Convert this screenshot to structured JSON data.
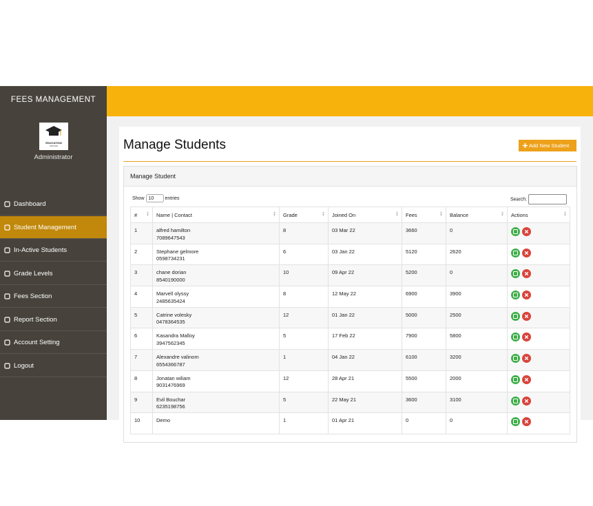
{
  "sidebar": {
    "title": "FEES MANAGEMENT",
    "logo_text": [
      "EDUCATION",
      "CENTER"
    ],
    "user": "Administrator",
    "active": 1,
    "menu": [
      "Dashboard",
      "Student Management",
      "In-Active Students",
      "Grade Levels",
      "Fees Section",
      "Report Section",
      "Account Setting",
      "Logout"
    ]
  },
  "main": {
    "heading": "Manage Students",
    "add_button": "Add New Student",
    "panel_title": "Manage Student",
    "show_label": "Show",
    "page_size": "10",
    "entries_label": "entries",
    "search_label": "Search:",
    "table": {
      "columns": [
        "#",
        "Name | Contact",
        "Grade",
        "Joined On",
        "Fees",
        "Balance",
        "Actions"
      ],
      "rows": [
        {
          "id": 1,
          "name": "alfred hamilton",
          "contact": "7089647543",
          "grade": 8,
          "joined": "03 Mar 22",
          "fees": 3660,
          "balance": 0
        },
        {
          "id": 2,
          "name": "Stephane gelmore",
          "contact": "0598734231",
          "grade": 6,
          "joined": "03 Jan 22",
          "fees": 5120,
          "balance": 2620
        },
        {
          "id": 3,
          "name": "chane dorian",
          "contact": "8540190000",
          "grade": 10,
          "joined": "09 Apr 22",
          "fees": 5200,
          "balance": 0
        },
        {
          "id": 4,
          "name": "Marvell olyssy",
          "contact": "2485635424",
          "grade": 8,
          "joined": "12 May 22",
          "fees": 6900,
          "balance": 3900
        },
        {
          "id": 5,
          "name": "Catrine volesky",
          "contact": "0478364535",
          "grade": 12,
          "joined": "01 Jan 22",
          "fees": 5000,
          "balance": 2500
        },
        {
          "id": 6,
          "name": "Kasandra Malloy",
          "contact": "3947562345",
          "grade": 5,
          "joined": "17 Feb 22",
          "fees": 7900,
          "balance": 5800
        },
        {
          "id": 7,
          "name": "Alexandre valinom",
          "contact": "6554366787",
          "grade": 1,
          "joined": "04 Jan 22",
          "fees": 6100,
          "balance": 3200
        },
        {
          "id": 8,
          "name": "Jonatan wiliam",
          "contact": "9031476969",
          "grade": 12,
          "joined": "28 Apr 21",
          "fees": 5500,
          "balance": 2000
        },
        {
          "id": 9,
          "name": "Evil Bouchar",
          "contact": "6235198756",
          "grade": 5,
          "joined": "22 May 21",
          "fees": 3600,
          "balance": 3100
        },
        {
          "id": 10,
          "name": "Demo",
          "grade": 1,
          "joined": "01 Apr 21",
          "fees": 0,
          "balance": 0
        }
      ]
    }
  }
}
